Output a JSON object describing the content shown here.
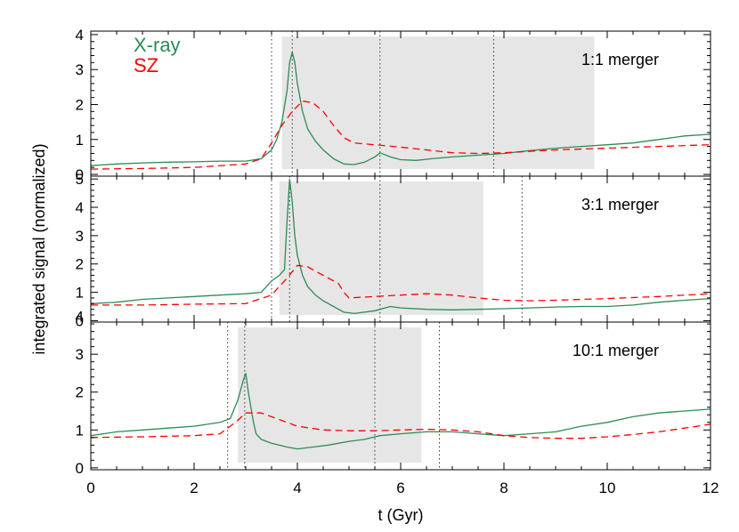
{
  "chart_data": {
    "type": "line",
    "xlabel": "t (Gyr)",
    "ylabel": "integrated signal (normalized)",
    "xlim": [
      0,
      12
    ],
    "x_ticks": [
      "0",
      "2",
      "4",
      "6",
      "8",
      "10",
      "12"
    ],
    "legend": {
      "placement": "top-left",
      "entries": [
        {
          "name": "X-ray",
          "color": "#2e8b57",
          "style": "solid"
        },
        {
          "name": "SZ",
          "color": "#ff0000",
          "style": "dashed"
        }
      ]
    },
    "panels": [
      {
        "label": "1:1 merger",
        "ylim": [
          -0.05,
          4.1
        ],
        "y_ticks": [
          "0",
          "1",
          "2",
          "3",
          "4"
        ],
        "shaded_region": [
          3.7,
          9.75
        ],
        "vertical_lines": [
          3.5,
          3.9,
          5.6,
          7.8
        ],
        "series": [
          {
            "name": "X-ray",
            "x": [
              0,
              0.5,
              1.0,
              1.5,
              2.0,
              2.5,
              3.0,
              3.3,
              3.5,
              3.6,
              3.7,
              3.8,
              3.85,
              3.9,
              3.95,
              4.0,
              4.1,
              4.2,
              4.35,
              4.5,
              4.7,
              4.9,
              5.1,
              5.3,
              5.5,
              5.6,
              5.8,
              6.0,
              6.3,
              6.6,
              7.0,
              7.5,
              8.0,
              8.5,
              9.0,
              9.5,
              10.0,
              10.5,
              11.0,
              11.5,
              12.0
            ],
            "y": [
              0.25,
              0.3,
              0.33,
              0.35,
              0.36,
              0.38,
              0.38,
              0.45,
              0.7,
              1.0,
              1.5,
              2.4,
              3.2,
              3.5,
              3.2,
              2.6,
              1.8,
              1.3,
              0.95,
              0.7,
              0.45,
              0.3,
              0.28,
              0.35,
              0.5,
              0.62,
              0.5,
              0.42,
              0.4,
              0.45,
              0.5,
              0.55,
              0.6,
              0.68,
              0.75,
              0.8,
              0.85,
              0.9,
              1.0,
              1.1,
              1.15
            ]
          },
          {
            "name": "SZ",
            "x": [
              0,
              1.0,
              2.0,
              3.0,
              3.3,
              3.5,
              3.7,
              3.9,
              4.1,
              4.3,
              4.5,
              4.7,
              4.9,
              5.1,
              5.5,
              6.0,
              6.5,
              7.0,
              7.5,
              8.0,
              9.0,
              10.0,
              11.0,
              12.0
            ],
            "y": [
              0.15,
              0.17,
              0.2,
              0.3,
              0.45,
              0.9,
              1.4,
              1.8,
              2.1,
              2.05,
              1.8,
              1.4,
              1.05,
              0.9,
              0.85,
              0.78,
              0.7,
              0.62,
              0.6,
              0.62,
              0.7,
              0.75,
              0.8,
              0.85
            ]
          }
        ]
      },
      {
        "label": "3:1 merger",
        "ylim": [
          -0.05,
          5.1
        ],
        "y_ticks": [
          "0",
          "1",
          "2",
          "3",
          "4",
          "5"
        ],
        "shaded_region": [
          3.65,
          7.6
        ],
        "vertical_lines": [
          3.5,
          3.85,
          5.6,
          8.35
        ],
        "series": [
          {
            "name": "X-ray",
            "x": [
              0,
              0.5,
              1.0,
              1.5,
              2.0,
              2.5,
              3.0,
              3.3,
              3.5,
              3.65,
              3.75,
              3.8,
              3.85,
              3.9,
              3.95,
              4.0,
              4.1,
              4.2,
              4.35,
              4.5,
              4.7,
              4.9,
              5.1,
              5.5,
              5.8,
              6.0,
              6.5,
              7.0,
              7.5,
              8.0,
              8.5,
              9.0,
              9.5,
              10.0,
              10.5,
              11.0,
              11.5,
              12.0
            ],
            "y": [
              0.6,
              0.65,
              0.75,
              0.8,
              0.85,
              0.9,
              0.95,
              1.0,
              1.4,
              1.6,
              1.8,
              3.5,
              5.0,
              4.2,
              3.0,
              2.3,
              1.6,
              1.2,
              0.9,
              0.7,
              0.5,
              0.3,
              0.25,
              0.35,
              0.5,
              0.45,
              0.4,
              0.38,
              0.4,
              0.42,
              0.45,
              0.48,
              0.5,
              0.5,
              0.55,
              0.65,
              0.72,
              0.78
            ]
          },
          {
            "name": "SZ",
            "x": [
              0,
              1.0,
              2.0,
              3.0,
              3.5,
              3.8,
              4.0,
              4.2,
              4.4,
              4.6,
              4.8,
              4.9,
              5.0,
              5.5,
              6.0,
              6.5,
              7.0,
              7.5,
              8.0,
              8.5,
              9.0,
              9.5,
              10.0,
              11.0,
              12.0
            ],
            "y": [
              0.55,
              0.55,
              0.58,
              0.6,
              0.9,
              1.5,
              1.95,
              1.9,
              1.7,
              1.5,
              1.3,
              1.0,
              0.8,
              0.85,
              0.9,
              0.95,
              0.9,
              0.8,
              0.72,
              0.7,
              0.72,
              0.75,
              0.78,
              0.85,
              0.95
            ]
          }
        ]
      },
      {
        "label": "10:1 merger",
        "ylim": [
          -0.05,
          3.85
        ],
        "y_ticks": [
          "0",
          "1",
          "2",
          "3",
          "4"
        ],
        "shaded_region": [
          2.85,
          6.4
        ],
        "vertical_lines": [
          2.65,
          2.98,
          5.5,
          6.75
        ],
        "series": [
          {
            "name": "X-ray",
            "x": [
              0,
              0.5,
              1.0,
              1.5,
              2.0,
              2.5,
              2.7,
              2.85,
              2.95,
              3.0,
              3.05,
              3.1,
              3.15,
              3.2,
              3.3,
              3.5,
              3.8,
              4.0,
              4.3,
              4.6,
              5.0,
              5.3,
              5.6,
              6.0,
              6.5,
              7.0,
              7.5,
              8.0,
              8.5,
              9.0,
              9.5,
              10.0,
              10.5,
              11.0,
              11.5,
              12.0
            ],
            "y": [
              0.85,
              0.95,
              1.0,
              1.05,
              1.1,
              1.2,
              1.3,
              1.8,
              2.3,
              2.5,
              2.0,
              1.6,
              1.2,
              0.9,
              0.75,
              0.65,
              0.55,
              0.5,
              0.55,
              0.6,
              0.7,
              0.75,
              0.85,
              0.9,
              0.95,
              0.95,
              0.9,
              0.85,
              0.9,
              0.95,
              1.1,
              1.2,
              1.35,
              1.45,
              1.5,
              1.55
            ]
          },
          {
            "name": "SZ",
            "x": [
              0,
              1.0,
              2.0,
              2.5,
              2.8,
              3.0,
              3.3,
              3.6,
              4.0,
              4.5,
              5.0,
              5.5,
              6.0,
              6.5,
              7.0,
              7.5,
              8.0,
              8.5,
              9.0,
              9.5,
              10.0,
              10.5,
              11.0,
              11.5,
              12.0
            ],
            "y": [
              0.8,
              0.82,
              0.85,
              0.9,
              1.2,
              1.45,
              1.45,
              1.3,
              1.1,
              1.0,
              0.98,
              0.98,
              1.0,
              1.02,
              1.0,
              0.95,
              0.85,
              0.8,
              0.78,
              0.78,
              0.82,
              0.88,
              0.95,
              1.05,
              1.15
            ]
          }
        ]
      }
    ]
  }
}
